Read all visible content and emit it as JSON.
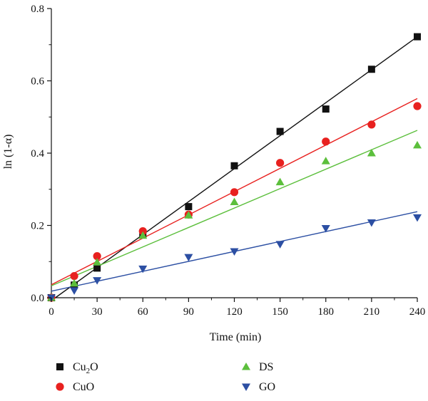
{
  "chart_data": {
    "type": "scatter",
    "xlabel": "Time (min)",
    "ylabel": "ln (1-α)",
    "xlim": [
      0,
      240
    ],
    "ylim": [
      0,
      0.8
    ],
    "xticks": [
      0,
      30,
      60,
      90,
      120,
      150,
      180,
      210,
      240
    ],
    "yticks": [
      0.0,
      0.2,
      0.4,
      0.6,
      0.8
    ],
    "xtick_labels": [
      "0",
      "30",
      "60",
      "90",
      "120",
      "150",
      "180",
      "210",
      "240"
    ],
    "ytick_labels": [
      "0.0",
      "0.2",
      "0.4",
      "0.6",
      "0.8"
    ],
    "grid": false,
    "legend_placement": "below",
    "series": [
      {
        "name": "Cu2O",
        "label_main": "Cu",
        "label_sub": "2",
        "label_tail": "O",
        "marker": "square",
        "color": "#111111",
        "x": [
          0,
          15,
          30,
          60,
          90,
          120,
          150,
          180,
          210,
          240
        ],
        "y": [
          0.0,
          0.035,
          0.082,
          0.175,
          0.252,
          0.365,
          0.46,
          0.522,
          0.632,
          0.722
        ],
        "fit": {
          "slope": 0.003042,
          "intercept": -0.008
        }
      },
      {
        "name": "CuO",
        "marker": "circle",
        "color": "#e8211f",
        "x": [
          0,
          15,
          30,
          60,
          90,
          120,
          150,
          180,
          210,
          240
        ],
        "y": [
          0.0,
          0.06,
          0.115,
          0.184,
          0.23,
          0.292,
          0.373,
          0.432,
          0.479,
          0.53
        ],
        "fit": {
          "slope": 0.002146,
          "intercept": 0.036
        }
      },
      {
        "name": "DS",
        "marker": "triangle-up",
        "color": "#5cbf3c",
        "x": [
          0,
          15,
          30,
          60,
          90,
          120,
          150,
          180,
          210,
          240
        ],
        "y": [
          0.0,
          0.04,
          0.098,
          0.172,
          0.228,
          0.265,
          0.32,
          0.378,
          0.4,
          0.422
        ],
        "fit": {
          "slope": 0.001792,
          "intercept": 0.033
        }
      },
      {
        "name": "GO",
        "marker": "triangle-down",
        "color": "#2c4fa3",
        "x": [
          0,
          15,
          30,
          60,
          90,
          120,
          150,
          180,
          210,
          240
        ],
        "y": [
          0.0,
          0.02,
          0.048,
          0.08,
          0.112,
          0.128,
          0.148,
          0.192,
          0.208,
          0.222
        ],
        "fit": {
          "slope": 0.000917,
          "intercept": 0.018
        }
      }
    ]
  }
}
